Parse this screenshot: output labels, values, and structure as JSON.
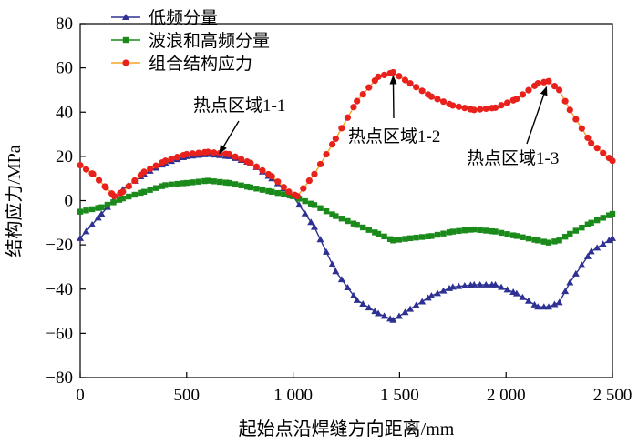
{
  "chart_data": {
    "type": "line",
    "title": "",
    "xlabel": "起始点沿焊缝方向距离/mm",
    "ylabel": "结构应力/MPa",
    "xlim": [
      0,
      2500
    ],
    "ylim": [
      -80,
      80
    ],
    "xticks": [
      0,
      500,
      1000,
      1500,
      2000,
      2500
    ],
    "xtick_labels": [
      "0",
      "500",
      "1 000",
      "1 500",
      "2 000",
      "2 500"
    ],
    "yticks": [
      -80,
      -60,
      -40,
      -20,
      0,
      20,
      40,
      60,
      80
    ],
    "ytick_labels": [
      "−80",
      "−60",
      "−40",
      "−20",
      "0",
      "20",
      "40",
      "60",
      "80"
    ],
    "grid": false,
    "legend_position": "top-left",
    "series": [
      {
        "name": "低频分量",
        "color": "#2e3192",
        "marker": "triangle",
        "points": [
          [
            0,
            -17
          ],
          [
            100,
            -6
          ],
          [
            200,
            5
          ],
          [
            300,
            12
          ],
          [
            400,
            17
          ],
          [
            500,
            20
          ],
          [
            600,
            21
          ],
          [
            700,
            20
          ],
          [
            800,
            17
          ],
          [
            900,
            10
          ],
          [
            1000,
            2
          ],
          [
            1100,
            -12
          ],
          [
            1200,
            -32
          ],
          [
            1300,
            -45
          ],
          [
            1400,
            -51
          ],
          [
            1470,
            -54
          ],
          [
            1550,
            -49
          ],
          [
            1650,
            -43
          ],
          [
            1750,
            -39
          ],
          [
            1850,
            -38
          ],
          [
            1950,
            -38
          ],
          [
            2050,
            -42
          ],
          [
            2150,
            -48
          ],
          [
            2200,
            -48
          ],
          [
            2250,
            -46
          ],
          [
            2300,
            -37
          ],
          [
            2400,
            -23
          ],
          [
            2500,
            -17
          ]
        ]
      },
      {
        "name": "波浪和高频分量",
        "color": "#1a8a1a",
        "marker": "square",
        "points": [
          [
            0,
            -5
          ],
          [
            100,
            -3
          ],
          [
            200,
            1
          ],
          [
            300,
            4
          ],
          [
            400,
            7
          ],
          [
            500,
            8
          ],
          [
            600,
            9
          ],
          [
            700,
            8
          ],
          [
            800,
            6
          ],
          [
            900,
            4
          ],
          [
            1000,
            2
          ],
          [
            1100,
            -2
          ],
          [
            1200,
            -7
          ],
          [
            1300,
            -11
          ],
          [
            1400,
            -15
          ],
          [
            1470,
            -18
          ],
          [
            1550,
            -17
          ],
          [
            1650,
            -16
          ],
          [
            1750,
            -14
          ],
          [
            1850,
            -13
          ],
          [
            1950,
            -14
          ],
          [
            2050,
            -16
          ],
          [
            2150,
            -18
          ],
          [
            2200,
            -19
          ],
          [
            2250,
            -18
          ],
          [
            2300,
            -15
          ],
          [
            2400,
            -10
          ],
          [
            2500,
            -6
          ]
        ]
      },
      {
        "name": "组合结构应力",
        "color": "#e8211d",
        "line_color": "#f5a623",
        "marker": "circle",
        "points": [
          [
            0,
            16
          ],
          [
            60,
            12
          ],
          [
            120,
            6
          ],
          [
            160,
            2
          ],
          [
            200,
            4
          ],
          [
            300,
            13
          ],
          [
            400,
            18
          ],
          [
            500,
            21
          ],
          [
            600,
            22
          ],
          [
            700,
            21
          ],
          [
            800,
            17
          ],
          [
            900,
            11
          ],
          [
            980,
            4
          ],
          [
            1020,
            2
          ],
          [
            1100,
            12
          ],
          [
            1200,
            28
          ],
          [
            1300,
            45
          ],
          [
            1400,
            56
          ],
          [
            1470,
            58
          ],
          [
            1550,
            53
          ],
          [
            1650,
            47
          ],
          [
            1750,
            43
          ],
          [
            1850,
            41
          ],
          [
            1950,
            42
          ],
          [
            2050,
            46
          ],
          [
            2150,
            53
          ],
          [
            2200,
            54
          ],
          [
            2250,
            50
          ],
          [
            2300,
            41
          ],
          [
            2400,
            26
          ],
          [
            2500,
            18
          ]
        ]
      }
    ],
    "annotations": [
      {
        "text": "热点区域1-1",
        "target": [
          620,
          23
        ]
      },
      {
        "text": "热点区域1-2",
        "target": [
          1470,
          58
        ]
      },
      {
        "text": "热点区域1-3",
        "target": [
          2190,
          53
        ]
      }
    ]
  }
}
